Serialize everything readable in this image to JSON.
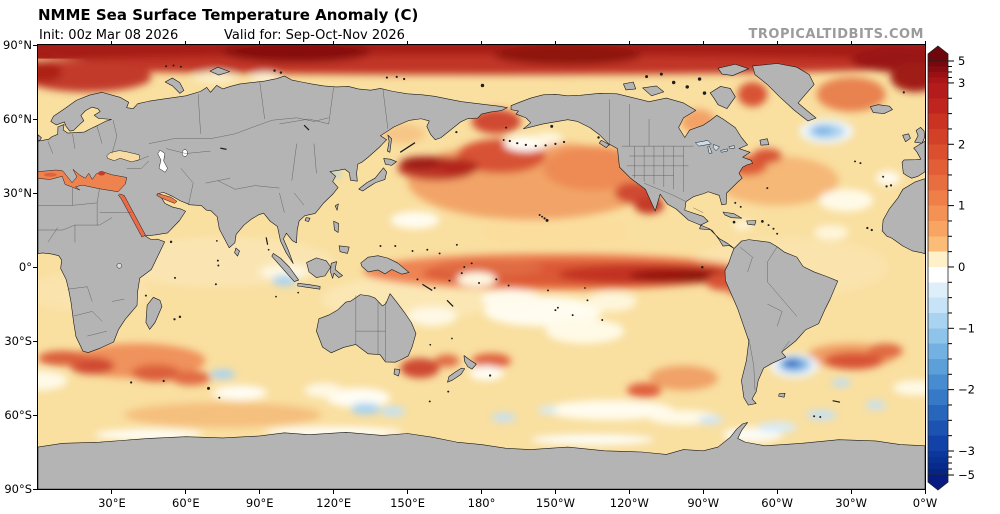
{
  "header": {
    "title": "NMME Sea Surface Temperature Anomaly (C)",
    "init": "Init: 00z Mar 08 2026",
    "valid": "Valid for: Sep-Oct-Nov 2026",
    "watermark": "TROPICALTIDBITS.COM"
  },
  "axes": {
    "x_ticks": [
      {
        "lon": 30,
        "label": "30°E"
      },
      {
        "lon": 60,
        "label": "60°E"
      },
      {
        "lon": 90,
        "label": "90°E"
      },
      {
        "lon": 120,
        "label": "120°E"
      },
      {
        "lon": 150,
        "label": "150°E"
      },
      {
        "lon": 180,
        "label": "180°"
      },
      {
        "lon": 210,
        "label": "150°W"
      },
      {
        "lon": 240,
        "label": "120°W"
      },
      {
        "lon": 270,
        "label": "90°W"
      },
      {
        "lon": 300,
        "label": "60°W"
      },
      {
        "lon": 330,
        "label": "30°W"
      },
      {
        "lon": 360,
        "label": "0°W"
      }
    ],
    "y_ticks": [
      {
        "lat": 90,
        "label": "90°N"
      },
      {
        "lat": 60,
        "label": "60°N"
      },
      {
        "lat": 30,
        "label": "30°N"
      },
      {
        "lat": 0,
        "label": "0°"
      },
      {
        "lat": -30,
        "label": "30°S"
      },
      {
        "lat": -60,
        "label": "60°S"
      },
      {
        "lat": -90,
        "label": "90°S"
      }
    ]
  },
  "colorbar": {
    "unit": "C",
    "domain": [
      5,
      -5
    ],
    "pivots": {
      "p3": 5.3,
      "pm3": 94.2
    },
    "ticks": [
      {
        "v": 5,
        "label": "5"
      },
      {
        "v": 3,
        "label": "3"
      },
      {
        "v": 2,
        "label": "2"
      },
      {
        "v": 1,
        "label": "1"
      },
      {
        "v": 0,
        "label": "0"
      },
      {
        "v": -1,
        "label": "−1"
      },
      {
        "v": -2,
        "label": "−2"
      },
      {
        "v": -3,
        "label": "−3"
      },
      {
        "v": -5,
        "label": "−5"
      }
    ],
    "arrow_top_color": "#6E070C",
    "arrow_bottom_color": "#081B83",
    "segments": [
      [
        5,
        4.5,
        "#77090E"
      ],
      [
        4.5,
        4,
        "#880D11"
      ],
      [
        4,
        3.5,
        "#9A1114"
      ],
      [
        3.5,
        3,
        "#A91518"
      ],
      [
        3,
        2.75,
        "#B41B1B"
      ],
      [
        2.75,
        2.5,
        "#BF241E"
      ],
      [
        2.5,
        2.25,
        "#CA3222"
      ],
      [
        2.25,
        2,
        "#D34028"
      ],
      [
        2,
        1.75,
        "#DB4F2E"
      ],
      [
        1.75,
        1.5,
        "#E25E36"
      ],
      [
        1.5,
        1.25,
        "#E96E3F"
      ],
      [
        1.25,
        1,
        "#EF7E49"
      ],
      [
        1,
        0.75,
        "#F49155"
      ],
      [
        0.75,
        0.5,
        "#F8A563"
      ],
      [
        0.5,
        0.25,
        "#FBBC77"
      ],
      [
        0.25,
        0,
        "#FEF0C8"
      ],
      [
        0,
        -0.25,
        "#FFFFFF"
      ],
      [
        -0.25,
        -0.5,
        "#DEEFFA"
      ],
      [
        -0.5,
        -0.75,
        "#C6E3F7"
      ],
      [
        -0.75,
        -1,
        "#A9D4F1"
      ],
      [
        -1,
        -1.25,
        "#8EC3EA"
      ],
      [
        -1.25,
        -1.5,
        "#73B1E2"
      ],
      [
        -1.5,
        -1.75,
        "#5C9FD9"
      ],
      [
        -1.75,
        -2,
        "#478CD0"
      ],
      [
        -2,
        -2.25,
        "#3679C6"
      ],
      [
        -2.25,
        -2.5,
        "#2866BC"
      ],
      [
        -2.5,
        -2.75,
        "#1C53B1"
      ],
      [
        -2.75,
        -3,
        "#1242A7"
      ],
      [
        -3,
        -3.5,
        "#0C389E"
      ],
      [
        -3.5,
        -4,
        "#093194"
      ],
      [
        -4,
        -4.5,
        "#072A8B"
      ],
      [
        -4.5,
        -5,
        "#062482"
      ]
    ]
  },
  "map": {
    "projection": "equirectangular 0E-360E, 90N-90S",
    "ocean_base": "#F9DFA0",
    "land_color": "#B4B4B4",
    "coast_color": "#1A1A1A",
    "border_color": "#4A4A4A",
    "anomaly_format": "[lon_east, 90_minus_lat, rx, ry, color]",
    "anomalies": [
      [
        75,
        88,
        45,
        10,
        "#FAE5B2"
      ],
      [
        150,
        103,
        35,
        9,
        "#FBE7B4"
      ],
      [
        305,
        90,
        40,
        12,
        "#FAE3AC"
      ],
      [
        20,
        100,
        25,
        8,
        "#FAE3AC"
      ],
      [
        210,
        75,
        30,
        7,
        "#FBDE9E"
      ],
      [
        200,
        55,
        50,
        16,
        "#F2A468"
      ],
      [
        225,
        50,
        20,
        9,
        "#EE8B55"
      ],
      [
        40,
        128,
        28,
        7,
        "#F0925B"
      ],
      [
        330,
        126,
        18,
        5,
        "#F09E63"
      ],
      [
        262,
        135,
        14,
        5,
        "#F0A267"
      ],
      [
        75,
        150,
        40,
        5,
        "#F5BF7E"
      ],
      [
        268,
        31,
        7,
        5,
        "#F2A266"
      ],
      [
        148,
        36,
        9,
        4,
        "#F6C687"
      ],
      [
        300,
        55,
        25,
        10,
        "#F5B877"
      ],
      [
        330,
        20,
        14,
        7,
        "#E8824F"
      ],
      [
        290,
        20,
        6,
        5,
        "#D85234"
      ],
      [
        180,
        2,
        190,
        7,
        "#A61C16"
      ],
      [
        180,
        8,
        190,
        4,
        "#C13527"
      ],
      [
        105,
        3,
        30,
        4,
        "#87100F"
      ],
      [
        215,
        4,
        30,
        4,
        "#8E130F"
      ],
      [
        350,
        6,
        20,
        5,
        "#9A1712"
      ],
      [
        20,
        13,
        26,
        6,
        "#C23B2B"
      ],
      [
        2,
        11,
        8,
        4,
        "#AD2119"
      ],
      [
        356,
        13,
        10,
        6,
        "#A01D17"
      ],
      [
        188,
        45,
        18,
        7,
        "#D85234"
      ],
      [
        162,
        50,
        16,
        5,
        "#C23B2B"
      ],
      [
        156,
        48,
        9,
        2.8,
        "#9E1A15"
      ],
      [
        170,
        49.5,
        9,
        3.2,
        "#B3251C"
      ],
      [
        186,
        31,
        10,
        5,
        "#D04A31"
      ],
      [
        243,
        60,
        9,
        4.5,
        "#D04A31"
      ],
      [
        248,
        65,
        6,
        3.5,
        "#C43A28"
      ],
      [
        288,
        49,
        8,
        4,
        "#DD5B38"
      ],
      [
        296,
        45,
        6,
        3,
        "#D85234"
      ],
      [
        210,
        92,
        78,
        7.5,
        "#EE8352"
      ],
      [
        222,
        92.5,
        66,
        5.5,
        "#DB5836"
      ],
      [
        247,
        93,
        36,
        4,
        "#C23122"
      ],
      [
        260,
        93.5,
        20,
        2.8,
        "#98180F"
      ],
      [
        270,
        94,
        10,
        2.2,
        "#8E130F"
      ],
      [
        183,
        90.5,
        22,
        3.5,
        "#E06A42"
      ],
      [
        278,
        96,
        7,
        3.5,
        "#D85234"
      ],
      [
        285,
        99,
        6,
        2.5,
        "#E06A42"
      ],
      [
        22,
        130,
        9,
        3.5,
        "#D04A31"
      ],
      [
        48,
        133,
        10,
        3.5,
        "#DB5F3B"
      ],
      [
        62,
        135,
        8,
        3,
        "#E06A42"
      ],
      [
        10,
        127,
        10,
        3,
        "#DB5F3B"
      ],
      [
        155,
        131,
        8,
        4,
        "#CE4930"
      ],
      [
        166,
        128,
        5,
        2.5,
        "#E06A42"
      ],
      [
        184,
        128,
        8,
        3,
        "#E0603C"
      ],
      [
        331,
        128,
        12,
        3.5,
        "#D85234"
      ],
      [
        344,
        124,
        7,
        3,
        "#E06A42"
      ],
      [
        246,
        140,
        7,
        3,
        "#E0603C"
      ],
      [
        205,
        108,
        24,
        6,
        "#FFFDF0"
      ],
      [
        222,
        116,
        16,
        5,
        "#FFFAE6"
      ],
      [
        192,
        103,
        12,
        4,
        "#FFFBEC"
      ],
      [
        233,
        104,
        10,
        4,
        "#FEF6DC"
      ],
      [
        153,
        71,
        10,
        3.5,
        "#FFFCF0"
      ],
      [
        130,
        143,
        13,
        4,
        "#FFFDF4"
      ],
      [
        116,
        140,
        8,
        3,
        "#FEF8E4"
      ],
      [
        232,
        148,
        26,
        4,
        "#FFFCEE"
      ],
      [
        262,
        151,
        14,
        3,
        "#FEFAE8"
      ],
      [
        0,
        136,
        12,
        4,
        "#FEFAE8"
      ],
      [
        356,
        139,
        9,
        3,
        "#FEFAE8"
      ],
      [
        82,
        141,
        11,
        3,
        "#FFFDF4"
      ],
      [
        328,
        63,
        11,
        4.5,
        "#FFFAE8"
      ],
      [
        322,
        76,
        7,
        3,
        "#FEF6DC"
      ],
      [
        345,
        54,
        5,
        3,
        "#FFFBEE"
      ],
      [
        198,
        40,
        9,
        3.2,
        "#FFFDF6"
      ],
      [
        207,
        38,
        6,
        2.5,
        "#FEF8E0"
      ],
      [
        100,
        92,
        10,
        3,
        "#FEF8E2"
      ],
      [
        178,
        95,
        8,
        3,
        "#FEF8E2"
      ],
      [
        160,
        110,
        10,
        4,
        "#FEF8E4"
      ],
      [
        182,
        133,
        7,
        3,
        "#FFFDF4"
      ],
      [
        290,
        158,
        12,
        3,
        "#FCFCF6"
      ],
      [
        120,
        157,
        28,
        2.2,
        "#FFFEF8"
      ],
      [
        45,
        158,
        22,
        2.2,
        "#FFFEF8"
      ],
      [
        225,
        160,
        25,
        2.2,
        "#FDFDF6"
      ],
      [
        72,
        13,
        9,
        2.5,
        "#FBEEC8"
      ],
      [
        92,
        13,
        6,
        2,
        "#FDF4D8"
      ],
      [
        286,
        73,
        4,
        1.8,
        "#FEF6DC"
      ],
      [
        320,
        35,
        11,
        5,
        "#F2F8FC"
      ],
      [
        320,
        35,
        7.5,
        3.2,
        "#ABD3F0"
      ],
      [
        318.5,
        34.7,
        4,
        1.8,
        "#7FB5E6"
      ],
      [
        307,
        130,
        10,
        5,
        "#EDF5FB"
      ],
      [
        307,
        129.5,
        6.5,
        3.2,
        "#7FB5E6"
      ],
      [
        306,
        129,
        3.5,
        1.8,
        "#3E7DC8"
      ],
      [
        305.5,
        128.8,
        2,
        1,
        "#2A66BE"
      ],
      [
        133,
        147.5,
        6,
        2.4,
        "#ABD3F0"
      ],
      [
        144,
        148.5,
        5,
        2,
        "#C5E1F5"
      ],
      [
        75,
        133.5,
        5,
        2,
        "#ABD3F0"
      ],
      [
        100,
        95.5,
        5,
        2.2,
        "#ABD3F0"
      ],
      [
        189,
        151,
        5,
        1.8,
        "#C5E1F5"
      ],
      [
        318,
        150,
        6,
        2,
        "#C5E1F5"
      ],
      [
        340,
        146,
        4,
        1.8,
        "#C5E1F5"
      ],
      [
        300,
        155,
        8,
        2.2,
        "#D8EBF8"
      ],
      [
        273,
        152,
        5,
        1.8,
        "#CFE6F7"
      ],
      [
        326,
        137,
        4,
        1.6,
        "#BFDEF4"
      ],
      [
        207,
        148,
        4,
        1.6,
        "#D8EBF8"
      ],
      [
        121,
        52.3,
        2,
        1.3,
        "#9FCDEE"
      ]
    ]
  }
}
